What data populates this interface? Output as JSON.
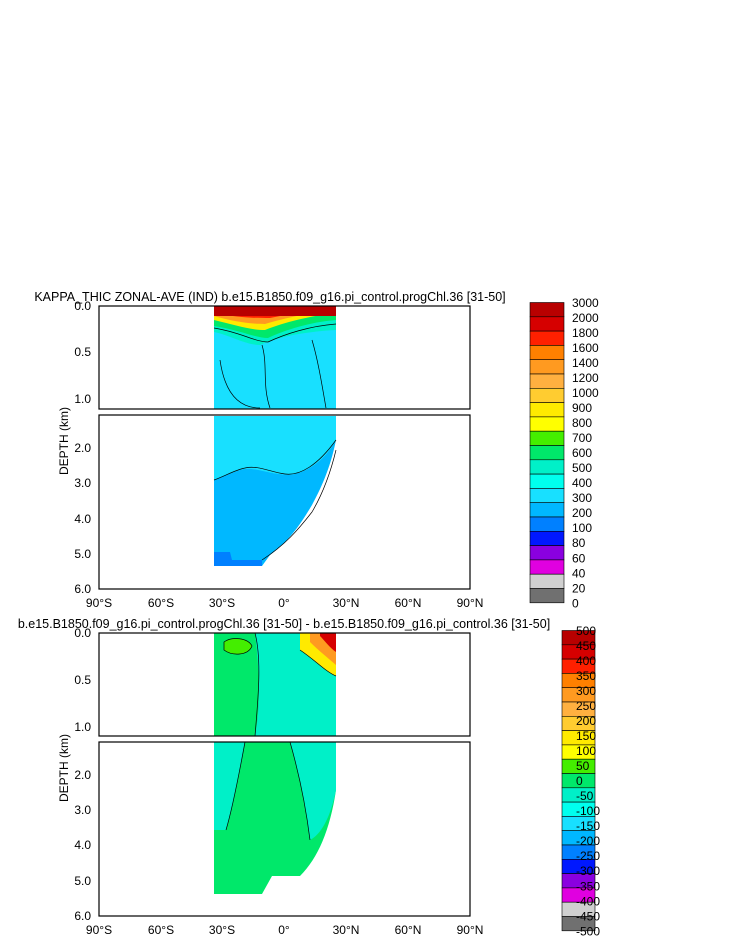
{
  "chart_data": [
    {
      "type": "heatmap",
      "title": "KAPPA_THIC ZONAL-AVE (IND) b.e15.B1850.f09_g16.pi_control.progChl.36 [31-50]",
      "xlabel": "",
      "ylabel": "DEPTH (km)",
      "x_ticks": [
        "90°S",
        "60°S",
        "30°S",
        "0°",
        "30°N",
        "60°N",
        "90°N"
      ],
      "x_tick_values": [
        -90,
        -60,
        -30,
        0,
        30,
        60,
        90
      ],
      "xlim": [
        -90,
        90
      ],
      "upper_panel": {
        "ylim": [
          0,
          1.1
        ],
        "y_ticks": [
          "0.0",
          "0.5",
          "1.0"
        ],
        "y_tick_values": [
          0,
          0.5,
          1.0
        ]
      },
      "lower_panel": {
        "ylim": [
          1.1,
          6.0
        ],
        "y_ticks": [
          "2.0",
          "3.0",
          "4.0",
          "5.0",
          "6.0"
        ],
        "y_tick_values": [
          2,
          3,
          4,
          5,
          6
        ]
      },
      "data_extent": {
        "lat_range": [
          -34,
          26
        ],
        "max_depth_km": 5.4
      },
      "colorbar": {
        "labels": [
          "3000",
          "2000",
          "1800",
          "1600",
          "1400",
          "1200",
          "1000",
          "900",
          "800",
          "700",
          "600",
          "500",
          "400",
          "300",
          "200",
          "100",
          "80",
          "60",
          "40",
          "20",
          "0"
        ],
        "colors": [
          "#b80000",
          "#d60000",
          "#ff2000",
          "#ff8000",
          "#ff9a20",
          "#ffb040",
          "#ffcc30",
          "#ffea00",
          "#ffff00",
          "#44ee00",
          "#00e86a",
          "#00f0c8",
          "#00ffee",
          "#18e0ff",
          "#00b8ff",
          "#0080ff",
          "#0018ff",
          "#8a00e0",
          "#e000e0",
          "#d0d0d0",
          "#707070"
        ]
      },
      "regions": [
        {
          "level": "3000",
          "lat": [
            -34,
            26
          ],
          "depth": [
            0,
            0.03
          ]
        },
        {
          "level": "1600-2000",
          "lat": [
            -34,
            26
          ],
          "depth": [
            0.03,
            0.1
          ]
        },
        {
          "level": "800-1400",
          "lat": [
            -34,
            26
          ],
          "depth": [
            0.1,
            0.25
          ]
        },
        {
          "level": "500-700",
          "lat": [
            -34,
            26
          ],
          "depth": [
            0.25,
            0.45
          ]
        },
        {
          "level": "400",
          "lat": [
            -34,
            26
          ],
          "depth": [
            0.3,
            1.1
          ]
        },
        {
          "level": "300",
          "lat": [
            -34,
            26
          ],
          "depth": [
            1.1,
            5.4
          ]
        },
        {
          "level": "200",
          "lat": [
            -34,
            26
          ],
          "depth": [
            5.0,
            5.4
          ]
        }
      ]
    },
    {
      "type": "heatmap",
      "title": "b.e15.B1850.f09_g16.pi_control.progChl.36 [31-50] - b.e15.B1850.f09_g16.pi_control.36 [31-50]",
      "xlabel": "",
      "ylabel": "DEPTH (km)",
      "x_ticks": [
        "90°S",
        "60°S",
        "30°S",
        "0°",
        "30°N",
        "60°N",
        "90°N"
      ],
      "x_tick_values": [
        -90,
        -60,
        -30,
        0,
        30,
        60,
        90
      ],
      "xlim": [
        -90,
        90
      ],
      "upper_panel": {
        "ylim": [
          0,
          1.1
        ],
        "y_ticks": [
          "0.0",
          "0.5",
          "1.0"
        ],
        "y_tick_values": [
          0,
          0.5,
          1.0
        ]
      },
      "lower_panel": {
        "ylim": [
          1.1,
          6.0
        ],
        "y_ticks": [
          "2.0",
          "3.0",
          "4.0",
          "5.0",
          "6.0"
        ],
        "y_tick_values": [
          2,
          3,
          4,
          5,
          6
        ]
      },
      "data_extent": {
        "lat_range": [
          -34,
          26
        ],
        "max_depth_km": 5.4
      },
      "colorbar": {
        "labels": [
          "500",
          "450",
          "400",
          "350",
          "300",
          "250",
          "200",
          "150",
          "100",
          "50",
          "0",
          "-50",
          "-100",
          "-150",
          "-200",
          "-250",
          "-300",
          "-350",
          "-400",
          "-450",
          "-500"
        ],
        "colors": [
          "#b80000",
          "#d60000",
          "#ff2000",
          "#ff8000",
          "#ff9a20",
          "#ffb040",
          "#ffcc30",
          "#ffea00",
          "#ffff00",
          "#44ee00",
          "#00e86a",
          "#00f0c8",
          "#00ffee",
          "#18e0ff",
          "#00b8ff",
          "#0080ff",
          "#0018ff",
          "#8a00e0",
          "#e000e0",
          "#d0d0d0",
          "#707070"
        ]
      },
      "regions": [
        {
          "level": "0 to 50",
          "lat": [
            -34,
            26
          ],
          "depth": [
            0,
            5.4
          ]
        },
        {
          "level": "-50 to 0",
          "lat": [
            -12,
            26
          ],
          "depth": [
            0,
            3.5
          ]
        },
        {
          "level": "50 to 100",
          "lat": [
            -31,
            -25
          ],
          "depth": [
            0.02,
            0.08
          ]
        },
        {
          "level": "250 to 450",
          "lat": [
            12,
            26
          ],
          "depth": [
            0,
            0.15
          ]
        }
      ]
    }
  ]
}
